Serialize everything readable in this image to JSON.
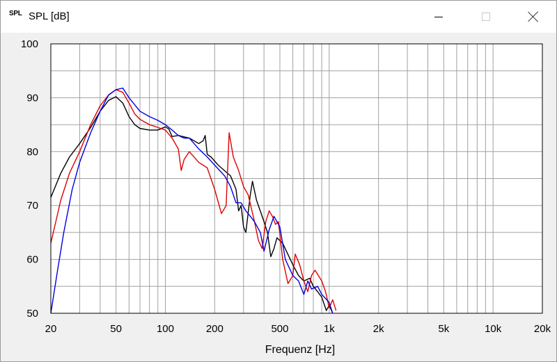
{
  "window": {
    "icon_text": "SPL",
    "title": "SPL [dB]",
    "icons": {
      "minimize": "minimize-icon",
      "maximize": "maximize-icon",
      "close": "close-icon"
    }
  },
  "chart_data": {
    "type": "line",
    "title": "SPL [dB]",
    "xlabel": "Frequenz [Hz]",
    "ylabel": "",
    "x_scale": "log",
    "xlim": [
      20,
      20000
    ],
    "ylim": [
      50,
      100
    ],
    "grid": true,
    "x_ticks": [
      {
        "v": 20,
        "label": "20"
      },
      {
        "v": 50,
        "label": "50"
      },
      {
        "v": 100,
        "label": "100"
      },
      {
        "v": 200,
        "label": "200"
      },
      {
        "v": 500,
        "label": "500"
      },
      {
        "v": 1000,
        "label": "1k"
      },
      {
        "v": 2000,
        "label": "2k"
      },
      {
        "v": 5000,
        "label": "5k"
      },
      {
        "v": 10000,
        "label": "10k"
      },
      {
        "v": 20000,
        "label": "20k"
      }
    ],
    "y_ticks": [
      {
        "v": 50,
        "label": "50"
      },
      {
        "v": 60,
        "label": "60"
      },
      {
        "v": 70,
        "label": "70"
      },
      {
        "v": 80,
        "label": "80"
      },
      {
        "v": 90,
        "label": "90"
      },
      {
        "v": 100,
        "label": "100"
      }
    ],
    "series": [
      {
        "color": "#000000",
        "points": [
          [
            20,
            71.5
          ],
          [
            23,
            76
          ],
          [
            26,
            79
          ],
          [
            30,
            81.5
          ],
          [
            35,
            84.5
          ],
          [
            40,
            87.5
          ],
          [
            45,
            89.5
          ],
          [
            50,
            90.2
          ],
          [
            55,
            89
          ],
          [
            60,
            86.5
          ],
          [
            65,
            85
          ],
          [
            70,
            84.3
          ],
          [
            80,
            84
          ],
          [
            90,
            84
          ],
          [
            100,
            84.6
          ],
          [
            105,
            84.2
          ],
          [
            110,
            82.8
          ],
          [
            120,
            83
          ],
          [
            140,
            82.5
          ],
          [
            160,
            81.5
          ],
          [
            170,
            82
          ],
          [
            175,
            83
          ],
          [
            180,
            79.5
          ],
          [
            190,
            79
          ],
          [
            210,
            77.5
          ],
          [
            250,
            75.5
          ],
          [
            270,
            73
          ],
          [
            280,
            69
          ],
          [
            290,
            70
          ],
          [
            300,
            66
          ],
          [
            310,
            65
          ],
          [
            330,
            72
          ],
          [
            340,
            74.5
          ],
          [
            360,
            71
          ],
          [
            400,
            67
          ],
          [
            420,
            65
          ],
          [
            440,
            60.5
          ],
          [
            460,
            62
          ],
          [
            480,
            64
          ],
          [
            520,
            63
          ],
          [
            600,
            59
          ],
          [
            650,
            57
          ],
          [
            700,
            56
          ],
          [
            760,
            56.5
          ],
          [
            800,
            55
          ],
          [
            850,
            54
          ],
          [
            900,
            53
          ],
          [
            960,
            50.5
          ],
          [
            1000,
            51.5
          ],
          [
            1050,
            50
          ]
        ]
      },
      {
        "color": "#e00000",
        "points": [
          [
            20,
            63
          ],
          [
            23,
            71
          ],
          [
            26,
            76
          ],
          [
            30,
            80
          ],
          [
            35,
            85
          ],
          [
            40,
            88.5
          ],
          [
            45,
            90.5
          ],
          [
            50,
            91.5
          ],
          [
            55,
            91
          ],
          [
            60,
            89
          ],
          [
            65,
            87
          ],
          [
            70,
            86
          ],
          [
            80,
            85
          ],
          [
            90,
            84.5
          ],
          [
            100,
            84
          ],
          [
            110,
            82.5
          ],
          [
            120,
            80.5
          ],
          [
            125,
            76.5
          ],
          [
            130,
            78.5
          ],
          [
            140,
            80
          ],
          [
            160,
            78
          ],
          [
            180,
            77
          ],
          [
            200,
            73
          ],
          [
            220,
            68.5
          ],
          [
            235,
            70
          ],
          [
            245,
            83.5
          ],
          [
            260,
            79
          ],
          [
            280,
            76.5
          ],
          [
            300,
            73.5
          ],
          [
            320,
            72
          ],
          [
            350,
            67
          ],
          [
            370,
            63.5
          ],
          [
            390,
            62
          ],
          [
            410,
            67
          ],
          [
            430,
            69
          ],
          [
            450,
            68
          ],
          [
            470,
            66.5
          ],
          [
            490,
            67
          ],
          [
            520,
            60
          ],
          [
            560,
            55.5
          ],
          [
            600,
            57
          ],
          [
            620,
            61
          ],
          [
            660,
            59
          ],
          [
            700,
            56
          ],
          [
            740,
            54
          ],
          [
            780,
            57
          ],
          [
            820,
            58
          ],
          [
            900,
            56
          ],
          [
            950,
            54
          ],
          [
            1000,
            51
          ],
          [
            1050,
            52.5
          ],
          [
            1100,
            50.5
          ]
        ]
      },
      {
        "color": "#0000e0",
        "points": [
          [
            20,
            50
          ],
          [
            22,
            58
          ],
          [
            24,
            65
          ],
          [
            27,
            73
          ],
          [
            30,
            78
          ],
          [
            35,
            83.5
          ],
          [
            40,
            87.5
          ],
          [
            45,
            90.5
          ],
          [
            50,
            91.5
          ],
          [
            55,
            91.8
          ],
          [
            60,
            90
          ],
          [
            70,
            87.5
          ],
          [
            80,
            86.5
          ],
          [
            90,
            85.8
          ],
          [
            100,
            85
          ],
          [
            110,
            84
          ],
          [
            120,
            83
          ],
          [
            130,
            82.5
          ],
          [
            140,
            82.5
          ],
          [
            160,
            80.5
          ],
          [
            180,
            79
          ],
          [
            200,
            77.5
          ],
          [
            230,
            75.5
          ],
          [
            250,
            73.5
          ],
          [
            270,
            70.5
          ],
          [
            290,
            70.5
          ],
          [
            310,
            69
          ],
          [
            330,
            68
          ],
          [
            350,
            67
          ],
          [
            380,
            65
          ],
          [
            400,
            61.5
          ],
          [
            430,
            65.5
          ],
          [
            460,
            68
          ],
          [
            500,
            66
          ],
          [
            540,
            60
          ],
          [
            600,
            57
          ],
          [
            650,
            56
          ],
          [
            700,
            53.5
          ],
          [
            740,
            56
          ],
          [
            780,
            54.5
          ],
          [
            850,
            55
          ],
          [
            900,
            53.5
          ],
          [
            1000,
            52
          ],
          [
            1050,
            50
          ]
        ]
      }
    ]
  }
}
